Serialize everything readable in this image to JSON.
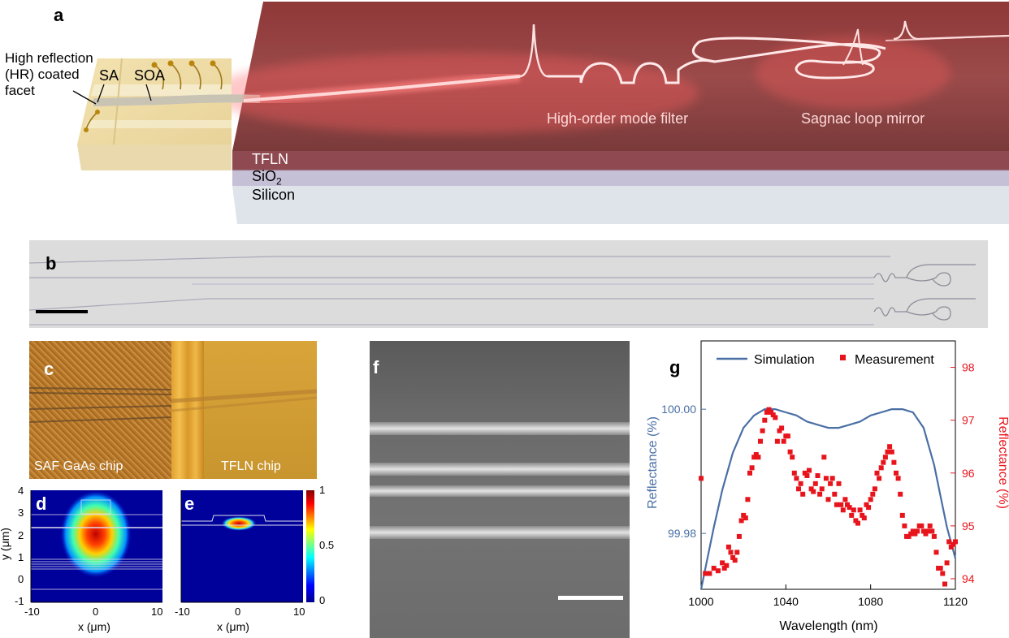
{
  "panel_a": {
    "label": "a",
    "hr_lines": [
      "High reflection",
      "(HR) coated",
      "facet"
    ],
    "sa": "SA",
    "soa": "SOA",
    "mode_filter": "High-order mode filter",
    "sagnac": "Sagnac loop mirror",
    "tfln": "TFLN",
    "sio2_base": "SiO",
    "sio2_sub": "2",
    "silicon": "Silicon"
  },
  "panel_b": {
    "label": "b"
  },
  "panel_c": {
    "label": "c",
    "left_text": "SAF GaAs chip",
    "right_text": "TFLN chip"
  },
  "panel_d": {
    "label": "d",
    "ylabel": "y (μm)",
    "xlabel": "x (μm)",
    "yticks": [
      "4",
      "3",
      "2",
      "1",
      "0",
      "-1"
    ],
    "xticks": [
      "-10",
      "0",
      "10"
    ]
  },
  "panel_e": {
    "label": "e",
    "xlabel": "x (μm)",
    "xticks": [
      "-10",
      "0",
      "10"
    ],
    "cbar_ticks": [
      "1",
      "0.5",
      "0"
    ]
  },
  "panel_f": {
    "label": "f"
  },
  "panel_g": {
    "label": "g"
  },
  "colors": {
    "simulation": "#4a6fa5",
    "measurement": "#e8141c",
    "glow": "#ff3c3c"
  },
  "chart_data": {
    "type": "line",
    "xlabel": "Wavelength (nm)",
    "ylabel": "Reflectance (%)",
    "y2label": "Reflectance (%)",
    "xlim": [
      1000,
      1120
    ],
    "xticks": [
      "1000",
      "1040",
      "1080",
      "1120"
    ],
    "ylim": [
      99.971,
      100.011
    ],
    "yticks": [
      "100.00",
      "99.98"
    ],
    "y2lim": [
      93.8,
      98.5
    ],
    "y2ticks": [
      "98",
      "97",
      "96",
      "95",
      "94"
    ],
    "legend": "top",
    "series": [
      {
        "name": "Simulation",
        "axis": "left",
        "kind": "line",
        "x": [
          1000,
          1003,
          1006,
          1010,
          1015,
          1020,
          1025,
          1030,
          1035,
          1040,
          1045,
          1050,
          1055,
          1060,
          1065,
          1070,
          1075,
          1080,
          1085,
          1090,
          1095,
          1100,
          1105,
          1110,
          1113,
          1116,
          1120
        ],
        "y": [
          99.971,
          99.976,
          99.981,
          99.987,
          99.993,
          99.997,
          99.999,
          100.0,
          100.0,
          99.9995,
          99.999,
          99.998,
          99.9975,
          99.997,
          99.997,
          99.9975,
          99.998,
          99.999,
          99.9995,
          100.0,
          100.0,
          99.9995,
          99.997,
          99.991,
          99.986,
          99.981,
          99.976
        ]
      },
      {
        "name": "Measurement",
        "axis": "right",
        "kind": "scatter",
        "x": [
          1000,
          1002,
          1004,
          1006,
          1008,
          1010,
          1011,
          1012,
          1013,
          1014,
          1015,
          1016,
          1017,
          1018,
          1019,
          1020,
          1021,
          1022,
          1023,
          1024,
          1025,
          1026,
          1027,
          1028,
          1029,
          1030,
          1031,
          1032,
          1033,
          1034,
          1035,
          1036,
          1037,
          1038,
          1039,
          1040,
          1041,
          1042,
          1043,
          1044,
          1045,
          1046,
          1047,
          1048,
          1049,
          1050,
          1051,
          1052,
          1053,
          1054,
          1055,
          1056,
          1057,
          1058,
          1059,
          1060,
          1061,
          1062,
          1063,
          1064,
          1065,
          1066,
          1067,
          1068,
          1069,
          1070,
          1071,
          1072,
          1073,
          1074,
          1075,
          1076,
          1077,
          1078,
          1079,
          1080,
          1081,
          1082,
          1083,
          1084,
          1085,
          1086,
          1087,
          1088,
          1089,
          1090,
          1091,
          1092,
          1093,
          1094,
          1095,
          1096,
          1097,
          1098,
          1099,
          1100,
          1101,
          1102,
          1103,
          1104,
          1105,
          1106,
          1107,
          1108,
          1109,
          1110,
          1111,
          1112,
          1113,
          1114,
          1115,
          1116,
          1117,
          1118,
          1119,
          1120
        ],
        "y": [
          95.9,
          94.1,
          94.1,
          94.2,
          94.15,
          94.3,
          94.2,
          94.25,
          94.6,
          94.5,
          94.4,
          94.35,
          94.5,
          94.8,
          95.1,
          95.2,
          95.15,
          95.5,
          96.0,
          96.1,
          96.3,
          96.35,
          96.3,
          96.6,
          96.8,
          97.0,
          97.15,
          97.2,
          97.15,
          97.1,
          97.05,
          96.6,
          96.8,
          96.85,
          96.6,
          96.7,
          96.7,
          96.4,
          96.3,
          96.0,
          95.9,
          95.7,
          95.8,
          95.6,
          96.0,
          95.95,
          96.05,
          95.7,
          95.65,
          95.8,
          95.95,
          95.6,
          95.7,
          96.3,
          95.9,
          95.5,
          95.8,
          95.9,
          95.6,
          95.4,
          95.8,
          95.4,
          95.3,
          95.5,
          95.4,
          95.35,
          95.2,
          95.3,
          95.1,
          95.05,
          95.3,
          95.2,
          95.15,
          95.4,
          95.35,
          95.5,
          95.6,
          95.7,
          96.0,
          95.9,
          96.1,
          96.2,
          96.3,
          96.4,
          96.5,
          96.4,
          96.2,
          96.0,
          95.9,
          95.6,
          95.2,
          95.0,
          94.8,
          94.8,
          94.85,
          94.9,
          94.85,
          94.9,
          95.0,
          95.0,
          94.9,
          94.85,
          94.9,
          95.0,
          94.9,
          94.8,
          94.5,
          94.2,
          94.2,
          94.1,
          93.9,
          94.3,
          94.7,
          94.6,
          94.65,
          94.7
        ]
      }
    ]
  }
}
